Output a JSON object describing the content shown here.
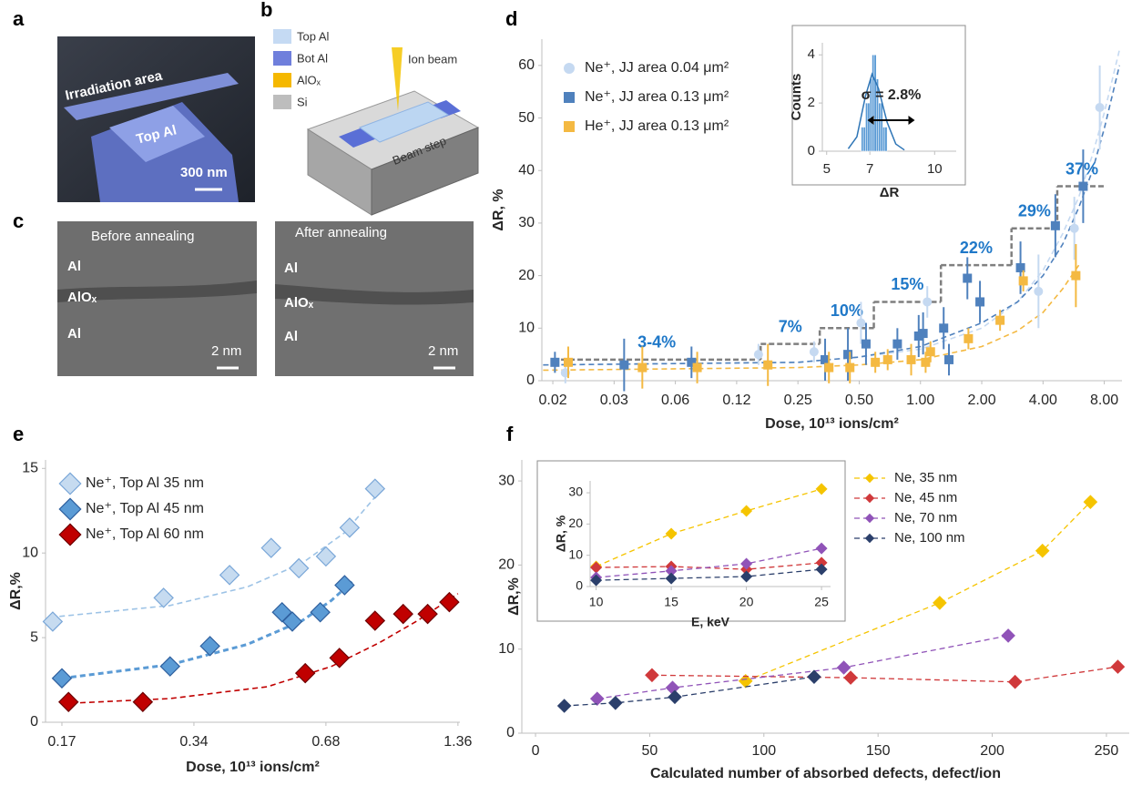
{
  "panel_labels": [
    "a",
    "b",
    "c",
    "d",
    "e",
    "f"
  ],
  "panel_a": {
    "texts": [
      "Irradiation area",
      "Top Al",
      "300 nm"
    ]
  },
  "panel_b": {
    "legend": [
      "Top Al",
      "Bot Al",
      "AlOₓ",
      "Si"
    ],
    "texts": [
      "Ion beam",
      "Beam step"
    ]
  },
  "panel_c": {
    "left": {
      "title": "Before annealing",
      "labels": [
        "Al",
        "AlOₓ",
        "Al"
      ],
      "scale": "2 nm"
    },
    "right": {
      "title": "After annealing",
      "labels": [
        "Al",
        "AlOₓ",
        "Al"
      ],
      "scale": "2 nm"
    }
  },
  "chart_data": [
    {
      "type": "scatter",
      "xlabel": "Dose, 10¹³ ions/cm²",
      "ylabel": "ΔR, %",
      "xscale": "log",
      "xlim": [
        0.0138,
        9.77
      ],
      "xticks": [
        {
          "value": 0.015625,
          "label": "0.02"
        },
        {
          "value": 0.03125,
          "label": "0.03"
        },
        {
          "value": 0.0625,
          "label": "0.06"
        },
        {
          "value": 0.125,
          "label": "0.12"
        },
        0.25,
        {
          "value": 0.5,
          "label": "0.50"
        },
        {
          "value": 1,
          "label": "1.00"
        },
        {
          "value": 2,
          "label": "2.00"
        },
        {
          "value": 4,
          "label": "4.00"
        },
        {
          "value": 8,
          "label": "8.00"
        }
      ],
      "ylim": [
        0,
        65
      ],
      "yticks": [
        0,
        10,
        20,
        30,
        40,
        50,
        60
      ],
      "legend": "upper left",
      "series": [
        {
          "name": "Ne⁺, JJ area 0.04 μm²",
          "color": "#c5d9f1",
          "marker": "circle",
          "x": [
            0.018,
            0.16,
            0.3,
            0.51,
            1.08,
            3.8,
            5.7,
            7.6
          ],
          "values": [
            1.5,
            5,
            5.5,
            11,
            15,
            17,
            29,
            52
          ],
          "errors": [
            2,
            2,
            2,
            4,
            3,
            7,
            6,
            8
          ]
        },
        {
          "name": "Ne⁺, JJ area 0.13 μm²",
          "color": "#4f81bd",
          "marker": "square",
          "x": [
            0.016,
            0.035,
            0.075,
            0.34,
            0.44,
            0.54,
            0.77,
            0.98,
            1.03,
            1.3,
            1.38,
            1.7,
            1.96,
            3.1,
            4.6,
            6.3
          ],
          "values": [
            3.5,
            3,
            3.5,
            4,
            5,
            7,
            7,
            8.5,
            9,
            10,
            4,
            19.5,
            15,
            21.5,
            29.5,
            37
          ],
          "errors": [
            2,
            5,
            3,
            4,
            5,
            4,
            3,
            4,
            4,
            4,
            3,
            4,
            4,
            5,
            6,
            7
          ]
        },
        {
          "name": "He⁺, JJ area 0.13 μm²",
          "color": "#f4b942",
          "marker": "square",
          "x": [
            0.0186,
            0.043,
            0.08,
            0.178,
            0.355,
            0.45,
            0.6,
            0.69,
            0.9,
            1.06,
            1.12,
            1.72,
            2.46,
            3.2,
            5.8
          ],
          "values": [
            3.5,
            2.5,
            2.5,
            3,
            2.5,
            2.5,
            3.5,
            4,
            4,
            3.5,
            5.5,
            8,
            11.5,
            19,
            20
          ],
          "errors": [
            3,
            4,
            3,
            4,
            3,
            3,
            2,
            2,
            3,
            2,
            2,
            2,
            2,
            2,
            6
          ]
        }
      ],
      "fits": [
        {
          "color": "#c5d9f1",
          "x": [
            0.014,
            0.25,
            0.5,
            1,
            2,
            3,
            4,
            5,
            6,
            7,
            8,
            9.5
          ],
          "values": [
            3,
            3.5,
            4.5,
            6,
            10,
            15,
            21,
            28,
            35,
            43,
            51,
            63
          ]
        },
        {
          "color": "#4f81bd",
          "x": [
            0.014,
            0.25,
            0.5,
            1,
            2,
            3,
            4,
            5,
            6,
            7,
            8,
            9.5
          ],
          "values": [
            3,
            3.5,
            4.5,
            6.5,
            11,
            15,
            20,
            26,
            33,
            40,
            48,
            60
          ]
        },
        {
          "color": "#f4b942",
          "x": [
            0.014,
            0.25,
            0.5,
            1,
            2,
            3,
            4,
            5,
            6
          ],
          "values": [
            2,
            2.5,
            3,
            4,
            6.5,
            9.5,
            13,
            17.5,
            22
          ]
        }
      ],
      "steps": {
        "color": "#7f7f7f",
        "label_color": "#1f78c8",
        "x": [
          0.015625,
          0.164,
          0.32,
          0.59,
          1.26,
          2.8,
          4.7,
          8.2
        ],
        "levels": [
          4,
          7,
          10,
          15,
          22,
          29,
          37
        ],
        "value_labels": [
          "3-4%",
          "7%",
          "10%",
          "15%",
          "22%",
          "29%",
          "37%"
        ]
      }
    },
    {
      "type": "histogram",
      "xlabel": "ΔR",
      "ylabel": "Counts",
      "xlim": [
        4.8,
        11
      ],
      "xticks": [
        5,
        7,
        10
      ],
      "ylim": [
        0,
        4.5
      ],
      "yticks": [
        0,
        2,
        4
      ],
      "bins": [
        6.6,
        6.7,
        6.8,
        6.9,
        7.0,
        7.1,
        7.2,
        7.3,
        7.4,
        7.5,
        7.6,
        7.7,
        7.8
      ],
      "counts": [
        1,
        1,
        2,
        2,
        3,
        4,
        4,
        3,
        2,
        2,
        1,
        1
      ],
      "color": "#5b9bd5",
      "curve": {
        "color": "#2e75b6",
        "x": [
          6.0,
          6.4,
          6.8,
          7.1,
          7.4,
          7.8,
          8.2,
          8.6
        ],
        "values": [
          0.1,
          0.6,
          2.3,
          3.2,
          2.6,
          1.2,
          0.3,
          0.05
        ]
      },
      "annotation": "σ = 2.8%"
    },
    {
      "type": "scatter",
      "xlabel": "Dose, 10¹³ ions/cm²",
      "ylabel": "ΔR,%",
      "xscale": "log",
      "xlim": [
        0.156,
        1.374
      ],
      "xticks": [
        0.17,
        0.34,
        0.68,
        1.36
      ],
      "ylim": [
        0,
        15.5
      ],
      "yticks": [
        0,
        5,
        10,
        15
      ],
      "legend": "upper left",
      "series": [
        {
          "name": "Ne⁺, Top Al 35 nm",
          "color": "#c6dbf0",
          "edgecolor": "#7aa7d8",
          "marker": "diamond",
          "x": [
            0.162,
            0.29,
            0.41,
            0.51,
            0.59,
            0.68,
            0.77,
            0.88
          ],
          "values": [
            5.95,
            7.35,
            8.7,
            10.3,
            9.1,
            9.8,
            11.5,
            13.8
          ]
        },
        {
          "name": "Ne⁺, Top Al 45 nm",
          "color": "#5b9bd5",
          "edgecolor": "#2e5f9e",
          "marker": "diamond",
          "x": [
            0.17,
            0.3,
            0.37,
            0.54,
            0.57,
            0.66,
            0.75
          ],
          "values": [
            2.6,
            3.3,
            4.5,
            6.5,
            5.95,
            6.5,
            8.1
          ]
        },
        {
          "name": "Ne⁺, Top Al 60 nm",
          "color": "#c00000",
          "edgecolor": "#6e0000",
          "marker": "diamond",
          "x": [
            0.176,
            0.26,
            0.61,
            0.73,
            0.88,
            1.02,
            1.16,
            1.3
          ],
          "values": [
            1.2,
            1.2,
            2.9,
            3.8,
            6.0,
            6.4,
            6.4,
            7.1
          ]
        }
      ],
      "fits": [
        {
          "color": "#9dc3e6",
          "x": [
            0.16,
            0.3,
            0.45,
            0.6,
            0.75,
            0.9
          ],
          "values": [
            6.2,
            6.9,
            8,
            9.4,
            11.2,
            13.6
          ]
        },
        {
          "color": "#5b9bd5",
          "x": [
            0.17,
            0.3,
            0.45,
            0.6,
            0.7,
            0.78
          ],
          "values": [
            2.6,
            3.4,
            4.6,
            6,
            7.2,
            8.3
          ]
        },
        {
          "color": "#c00000",
          "x": [
            0.17,
            0.3,
            0.5,
            0.7,
            0.9,
            1.1,
            1.36
          ],
          "values": [
            1.1,
            1.4,
            2.1,
            3.3,
            4.7,
            6,
            7.6
          ]
        }
      ]
    },
    {
      "type": "line",
      "xlabel": "Calculated number of absorbed defects, defect/ion",
      "ylabel": "ΔR,%",
      "xlim": [
        -6,
        260
      ],
      "xticks": [
        0,
        50,
        100,
        150,
        200,
        250
      ],
      "ylim": [
        0,
        32.5
      ],
      "yticks": [
        0,
        10,
        20,
        30
      ],
      "legend": "upper right",
      "series": [
        {
          "name": "Ne, 35 nm",
          "color": "#f5c400",
          "marker": "diamond",
          "line": "dashed",
          "x": [
            92,
            177,
            222,
            243
          ],
          "values": [
            6.2,
            15.5,
            21.7,
            27.5
          ]
        },
        {
          "name": "Ne, 45 nm",
          "color": "#d0393b",
          "marker": "diamond",
          "line": "dashed",
          "x": [
            51,
            138,
            210,
            255
          ],
          "values": [
            6.9,
            6.6,
            6.1,
            7.9
          ]
        },
        {
          "name": "Ne, 70 nm",
          "color": "#9053b8",
          "marker": "diamond",
          "line": "dashed",
          "x": [
            27,
            60,
            135,
            207
          ],
          "values": [
            4.1,
            5.4,
            7.8,
            11.6
          ]
        },
        {
          "name": "Ne, 100 nm",
          "color": "#2b3f6b",
          "marker": "diamond",
          "line": "dashed",
          "x": [
            12.6,
            35,
            61,
            122
          ],
          "values": [
            3.25,
            3.6,
            4.3,
            6.7
          ]
        }
      ]
    },
    {
      "type": "line",
      "xlabel": "E, keV",
      "ylabel": "ΔR, %",
      "x": [
        10,
        15,
        20,
        25
      ],
      "xlim": [
        9.6,
        25.6
      ],
      "xticks": [
        10,
        15,
        20,
        25
      ],
      "ylim": [
        0,
        33.8
      ],
      "yticks": [
        0,
        10,
        20,
        30
      ],
      "series": [
        {
          "color": "#f5c400",
          "marker": "diamond",
          "line": "dashed",
          "values": [
            6.4,
            16.9,
            24.2,
            31.2
          ]
        },
        {
          "color": "#d0393b",
          "marker": "diamond",
          "line": "dashed",
          "values": [
            6.1,
            6.4,
            5.5,
            7.6
          ]
        },
        {
          "color": "#9053b8",
          "marker": "diamond",
          "line": "dashed",
          "values": [
            2.9,
            5,
            7.3,
            12.2
          ]
        },
        {
          "color": "#2b3f6b",
          "marker": "diamond",
          "line": "dashed",
          "values": [
            2,
            2.6,
            3.2,
            5.5
          ]
        }
      ]
    }
  ]
}
